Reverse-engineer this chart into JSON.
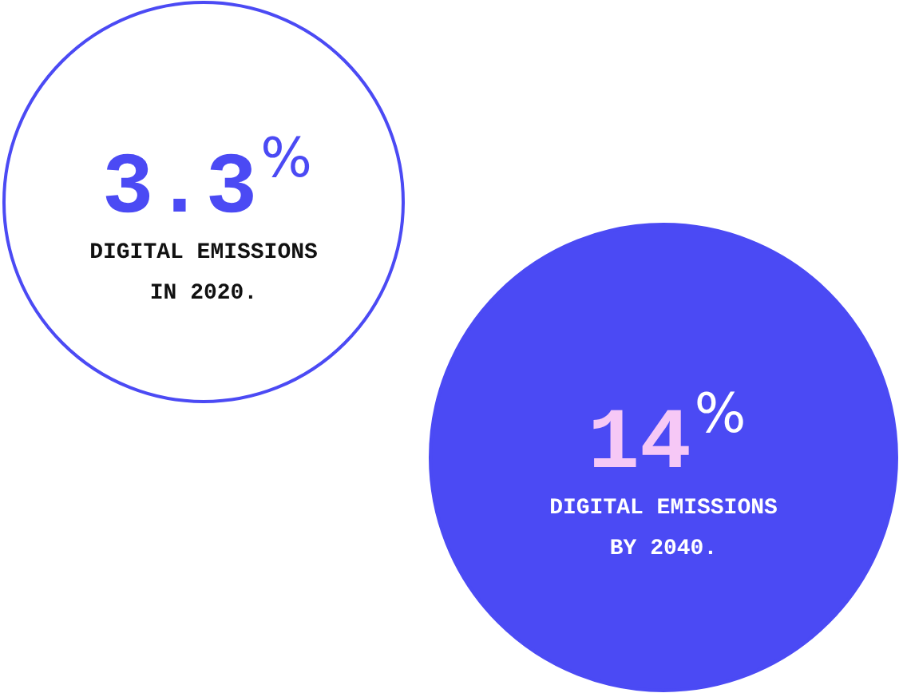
{
  "chart_data": {
    "type": "other",
    "categories": [
      "DIGITAL EMISSIONS\nIN 2020.",
      "DIGITAL EMISSIONS\nBY 2040."
    ],
    "values": [
      3.3,
      14
    ],
    "value_labels": [
      "3.3%",
      "14%"
    ],
    "colors": [
      "#ffffff",
      "#4b4af4"
    ]
  }
}
